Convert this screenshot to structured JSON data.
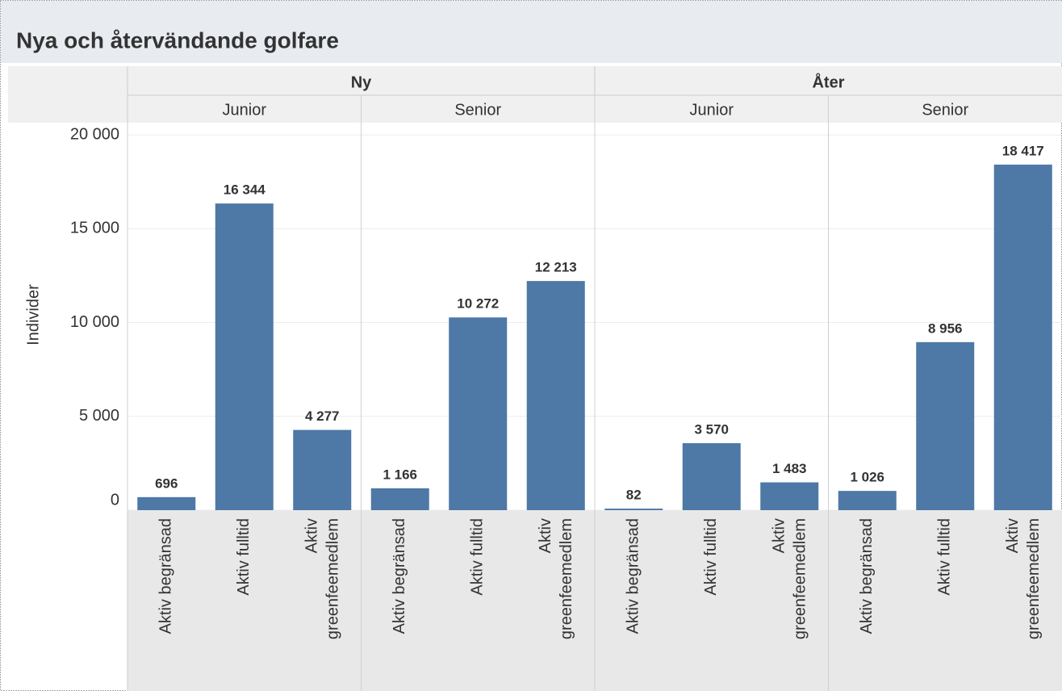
{
  "chart_data": {
    "type": "bar",
    "title": "Nya och återvändande golfare",
    "y_label": "Individer",
    "groups": [
      "Ny",
      "Åter"
    ],
    "subgroups": [
      "Junior",
      "Senior",
      "Junior",
      "Senior"
    ],
    "categories": [
      "Aktiv begränsad",
      "Aktiv fulltid",
      "Aktiv greenfeemedlem",
      "Aktiv begränsad",
      "Aktiv fulltid",
      "Aktiv greenfeemedlem",
      "Aktiv begränsad",
      "Aktiv fulltid",
      "Aktiv greenfeemedlem",
      "Aktiv begränsad",
      "Aktiv fulltid",
      "Aktiv greenfeemedlem"
    ],
    "values": [
      696,
      16344,
      4277,
      1166,
      10272,
      12213,
      82,
      3570,
      1483,
      1026,
      8956,
      18417
    ],
    "value_labels": [
      "696",
      "16 344",
      "4 277",
      "1 166",
      "10 272",
      "12 213",
      "82",
      "3 570",
      "1 483",
      "1 026",
      "8 956",
      "18 417"
    ],
    "color": "#4e78a6",
    "ylim": [
      0,
      20650
    ],
    "yticks": [
      0,
      {
        "value": 5000,
        "label": "5 000"
      },
      {
        "value": 10000,
        "label": "10 000"
      },
      {
        "value": 15000,
        "label": "15 000"
      },
      {
        "value": 20000,
        "label": "20 000"
      }
    ],
    "grid": true
  }
}
